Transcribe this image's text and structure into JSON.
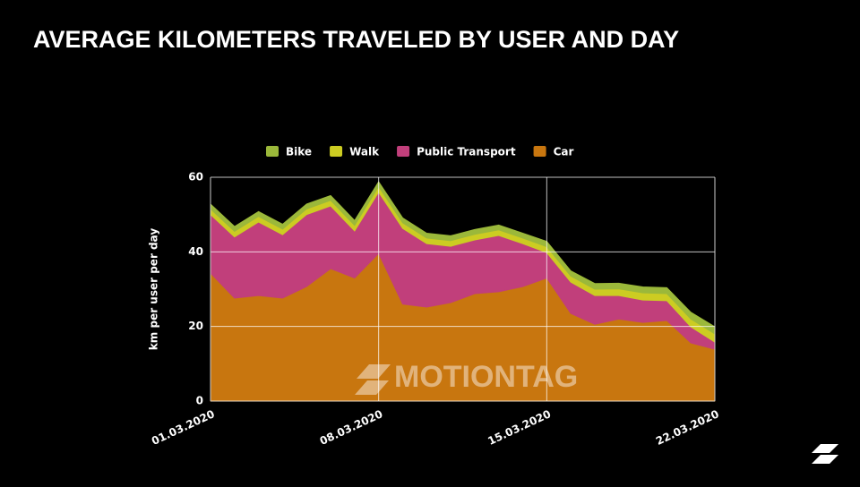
{
  "chart_data": {
    "type": "stacked-area",
    "title": "AVERAGE KILOMETERS TRAVELED BY USER AND DAY",
    "y_label": "km per user per day",
    "watermark": "MOTIONTAG",
    "x": [
      "01.03.2020",
      "02.03.2020",
      "03.03.2020",
      "04.03.2020",
      "05.03.2020",
      "06.03.2020",
      "07.03.2020",
      "08.03.2020",
      "09.03.2020",
      "10.03.2020",
      "11.03.2020",
      "12.03.2020",
      "13.03.2020",
      "14.03.2020",
      "15.03.2020",
      "16.03.2020",
      "17.03.2020",
      "18.03.2020",
      "19.03.2020",
      "20.03.2020",
      "21.03.2020",
      "22.03.2020"
    ],
    "series": [
      {
        "name": "Bike",
        "color": "#9bb83a",
        "values": [
          1.3,
          1.3,
          1.3,
          1.3,
          1.3,
          1.3,
          1.3,
          1.3,
          1.3,
          1.3,
          1.3,
          1.3,
          1.3,
          1.3,
          1.4,
          1.4,
          1.5,
          1.5,
          1.6,
          1.6,
          1.8,
          1.9
        ]
      },
      {
        "name": "Walk",
        "color": "#cccc22",
        "values": [
          1.5,
          1.5,
          1.5,
          1.5,
          1.5,
          1.5,
          1.5,
          1.5,
          1.5,
          1.5,
          1.5,
          1.5,
          1.5,
          1.5,
          1.6,
          1.6,
          1.7,
          1.8,
          1.9,
          1.9,
          2.1,
          2.2
        ]
      },
      {
        "name": "Public Transport",
        "color": "#c13f7b",
        "values": [
          15.7,
          16.4,
          19.7,
          17,
          19.3,
          16.8,
          12.6,
          16.4,
          20.3,
          17,
          15.1,
          14.4,
          15.1,
          11.5,
          6.8,
          8.4,
          7.7,
          6.3,
          6,
          5.3,
          4.3,
          1.9
        ]
      },
      {
        "name": "Car",
        "color": "#c8760f",
        "values": [
          34.3,
          27.6,
          28.3,
          27.6,
          30.7,
          35.5,
          33,
          39.6,
          26,
          25.2,
          26.4,
          28.8,
          29.3,
          30.7,
          33,
          23.5,
          20.6,
          22,
          21.1,
          21.6,
          15.6,
          13.9
        ]
      }
    ],
    "ylim": [
      0,
      60
    ],
    "yticks": [
      0,
      20,
      40,
      60
    ],
    "grid": true
  }
}
